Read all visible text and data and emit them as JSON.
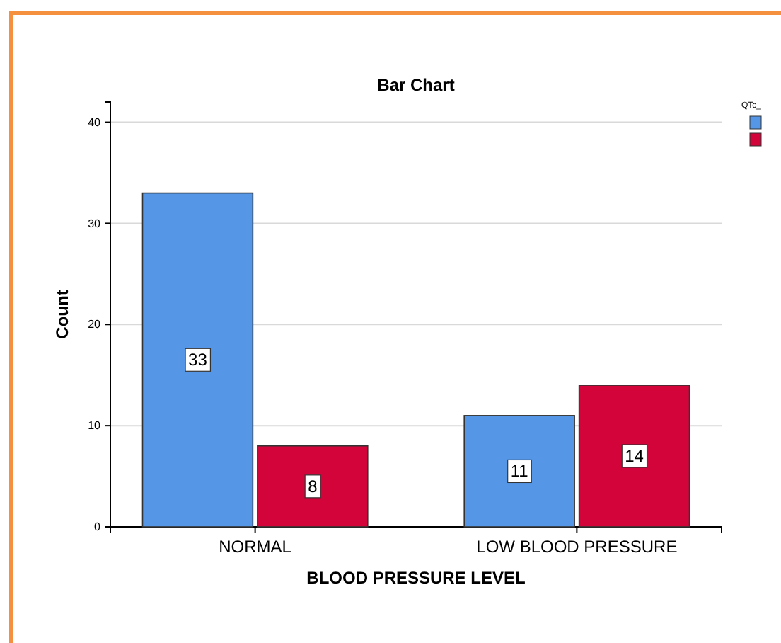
{
  "chart_data": {
    "type": "bar",
    "title": "Bar Chart",
    "xlabel": "BLOOD PRESSURE LEVEL",
    "ylabel": "Count",
    "legend_title": "QTc_",
    "categories": [
      "NORMAL",
      "LOW BLOOD PRESSURE"
    ],
    "series": [
      {
        "color": "#5596e6",
        "values": [
          33,
          11
        ]
      },
      {
        "color": "#d3043a",
        "values": [
          8,
          14
        ]
      }
    ],
    "ylim": [
      0,
      42
    ],
    "yticks": [
      0,
      10,
      20,
      30,
      40
    ],
    "grid": "y",
    "data_labels": true
  }
}
